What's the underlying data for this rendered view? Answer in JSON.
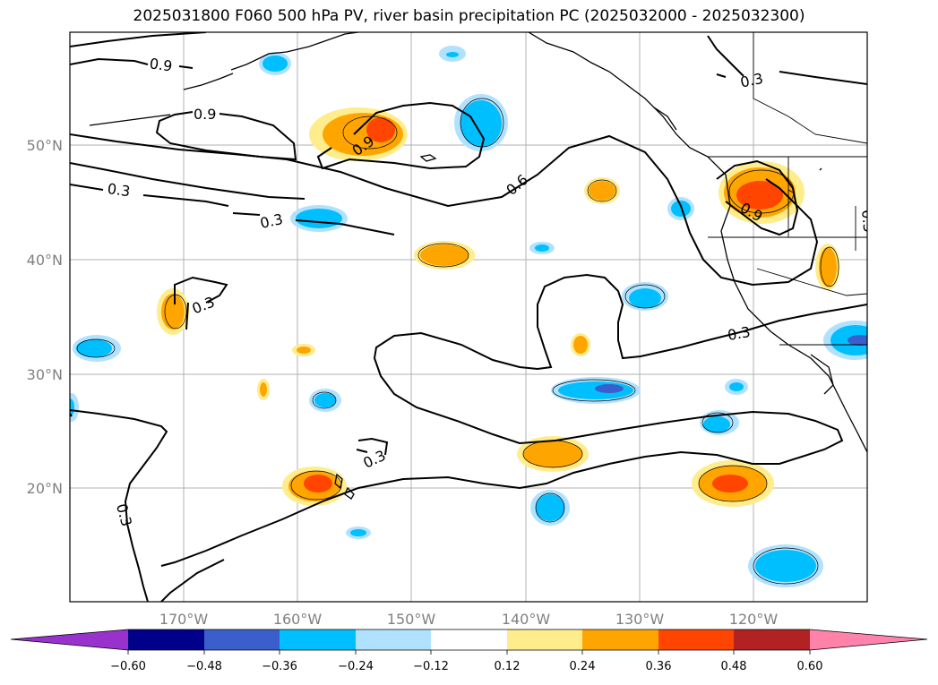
{
  "title": "2025031800 F060 500 hPa PV, river basin precipitation PC (2025032000 - 2025032300)",
  "map": {
    "lat_labels": [
      "50°N",
      "40°N",
      "30°N",
      "20°N"
    ],
    "lon_labels": [
      "170°W",
      "160°W",
      "150°W",
      "140°W",
      "130°W",
      "120°W"
    ],
    "contour_labels": [
      "0.9",
      "0.9",
      "0.9",
      "0.9",
      "0.6",
      "0.3",
      "0.3",
      "0.3",
      "0.3",
      "0.3",
      "0.3",
      "0.3",
      "0.3"
    ]
  },
  "colorbar": {
    "ticks": [
      "−0.60",
      "−0.48",
      "−0.36",
      "−0.24",
      "−0.12",
      "0.12",
      "0.24",
      "0.36",
      "0.48",
      "0.60"
    ],
    "colors": {
      "under": "#9932cc",
      "c1": "#00008b",
      "c2": "#3a5fcd",
      "c3": "#00bfff",
      "c4": "#b0e2ff",
      "c5": "#ffffff",
      "c6": "#ffec8b",
      "c7": "#ffa500",
      "c8": "#ff4500",
      "c9": "#b22222",
      "over": "#ff82ab"
    }
  }
}
